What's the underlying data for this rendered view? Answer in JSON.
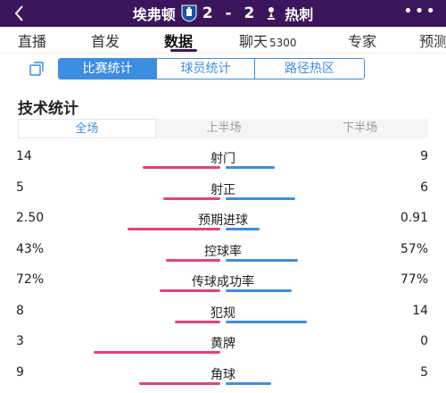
{
  "header": {
    "home_team": "埃弗顿",
    "score": "2 - 2",
    "away_team": "热刺",
    "more": "•••"
  },
  "nav": {
    "items": [
      {
        "label": "直播"
      },
      {
        "label": "首发"
      },
      {
        "label": "数据"
      },
      {
        "label": "聊天",
        "count": "5300"
      },
      {
        "label": "专家"
      },
      {
        "label": "预测"
      }
    ]
  },
  "subtabs": [
    "比赛统计",
    "球员统计",
    "路径热区"
  ],
  "section_title": "技术统计",
  "periods": [
    "全场",
    "上半场",
    "下半场"
  ],
  "stats": [
    {
      "label": "射门",
      "home": "14",
      "away": "9",
      "home_share": 0.61,
      "away_share": 0.39
    },
    {
      "label": "射正",
      "home": "5",
      "away": "6",
      "home_share": 0.45,
      "away_share": 0.55
    },
    {
      "label": "预期进球",
      "home": "2.50",
      "away": "0.91",
      "home_share": 0.73,
      "away_share": 0.27
    },
    {
      "label": "控球率",
      "home": "43%",
      "away": "57%",
      "home_share": 0.43,
      "away_share": 0.57
    },
    {
      "label": "传球成功率",
      "home": "72%",
      "away": "77%",
      "home_share": 0.48,
      "away_share": 0.52
    },
    {
      "label": "犯规",
      "home": "8",
      "away": "14",
      "home_share": 0.36,
      "away_share": 0.64
    },
    {
      "label": "黄牌",
      "home": "3",
      "away": "0",
      "home_share": 1.0,
      "away_share": 0.0
    },
    {
      "label": "角球",
      "home": "9",
      "away": "5",
      "home_share": 0.64,
      "away_share": 0.36
    }
  ],
  "colors": {
    "header_bg": "#3c165c",
    "home_bar": "#e4427a",
    "away_bar": "#3d8de0",
    "accent": "#3d8de0"
  },
  "icons": {
    "back": "chevron-left-icon",
    "home_crest": "everton-crest-icon",
    "away_crest": "tottenham-crest-icon",
    "copy": "copy-icon"
  }
}
